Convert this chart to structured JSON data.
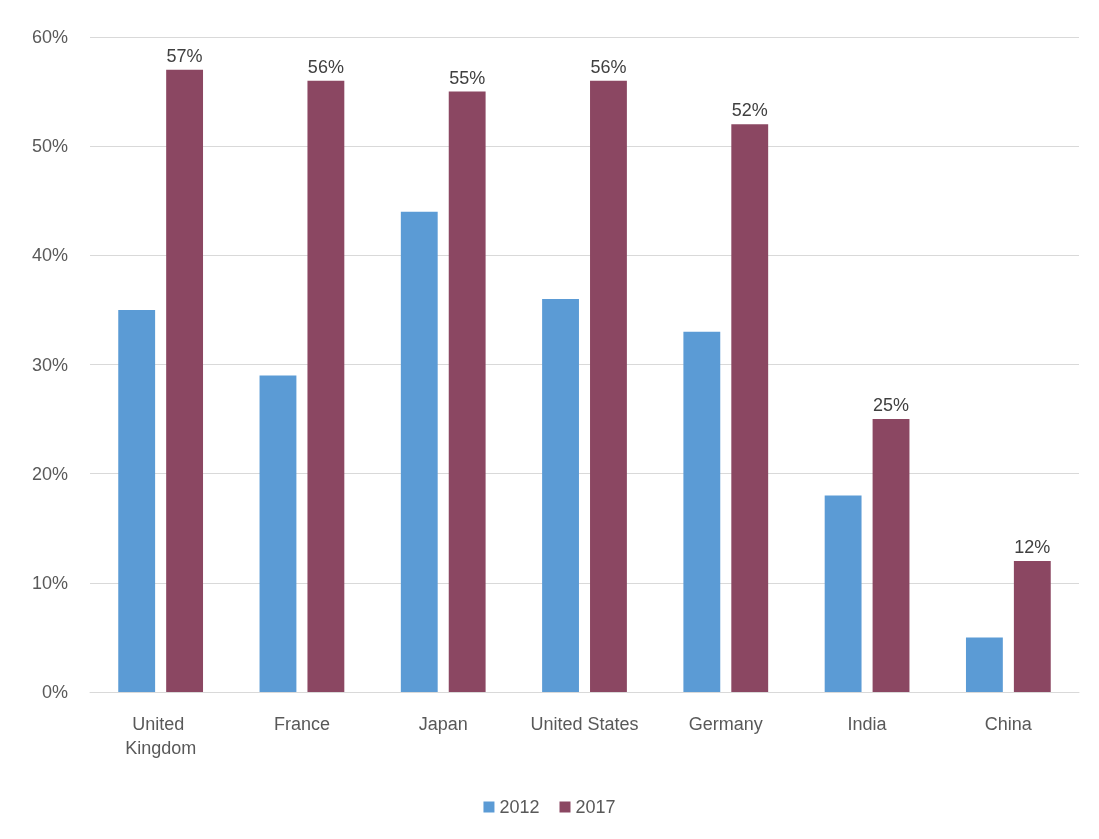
{
  "chart_data": {
    "type": "bar",
    "categories": [
      "United Kingdom",
      "France",
      "Japan",
      "United States",
      "Germany",
      "India",
      "China"
    ],
    "series": [
      {
        "name": "2012",
        "color": "#5b9bd5",
        "values": [
          35,
          29,
          44,
          36,
          33,
          18,
          5
        ]
      },
      {
        "name": "2017",
        "color": "#8b4762",
        "values": [
          57,
          56,
          55,
          56,
          52,
          25,
          12
        ],
        "value_labels": [
          "57%",
          "56%",
          "55%",
          "56%",
          "52%",
          "25%",
          "12%"
        ]
      }
    ],
    "ylim": [
      0,
      60
    ],
    "yticks": [
      {
        "value": 0,
        "label": "0%"
      },
      {
        "value": 10,
        "label": "10%"
      },
      {
        "value": 20,
        "label": "20%"
      },
      {
        "value": 30,
        "label": "30%"
      },
      {
        "value": 40,
        "label": "40%"
      },
      {
        "value": 50,
        "label": "50%"
      },
      {
        "value": 60,
        "label": "60%"
      }
    ],
    "grid": "y",
    "legend": "bottom"
  }
}
